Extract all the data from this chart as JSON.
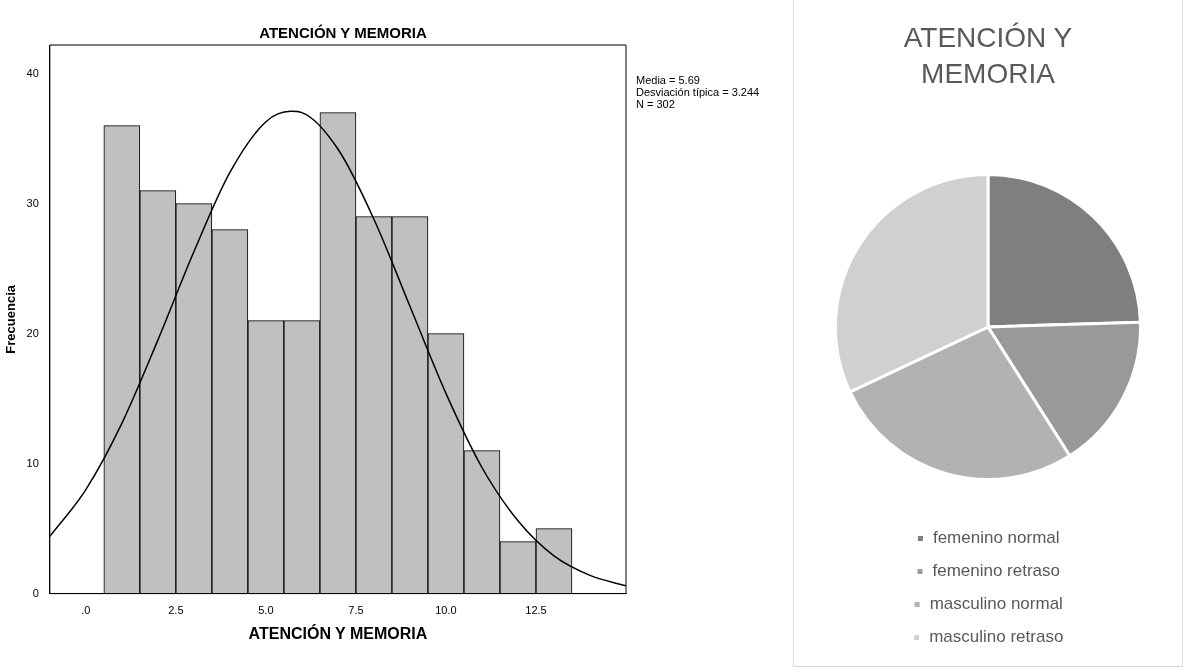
{
  "chart_data": [
    {
      "type": "histogram",
      "title": "ATENCIÓN Y MEMORIA",
      "xlabel": "ATENCIÓN Y MEMORIA",
      "ylabel": "Frecuencia",
      "bins": [
        0.5,
        1.5,
        2.5,
        3.5,
        4.5,
        5.5,
        6.5,
        7.5,
        8.5,
        9.5,
        10.5,
        11.5,
        12.5,
        13.5
      ],
      "values": [
        36,
        31,
        30,
        28,
        21,
        21,
        37,
        29,
        29,
        20,
        11,
        4,
        5
      ],
      "color": "#c0c0c0",
      "series": [
        {
          "type": "line",
          "color": "#000000",
          "x": [
            -1,
            0,
            1,
            2,
            3,
            4,
            5,
            5.69,
            6,
            7,
            8,
            9,
            10,
            11,
            12,
            13,
            14,
            15
          ],
          "values": [
            4.4,
            8.0,
            13.1,
            19.5,
            26.3,
            32.4,
            36.3,
            37.1,
            37.0,
            34.2,
            28.8,
            22.1,
            15.4,
            9.7,
            5.6,
            2.9,
            1.4,
            0.6
          ]
        }
      ],
      "xlim": [
        -1,
        15
      ],
      "ylim": [
        0,
        42.2
      ],
      "xticks": [
        {
          "value": 0,
          "label": ".0"
        },
        {
          "value": 2.5,
          "label": "2.5"
        },
        {
          "value": 5,
          "label": "5.0"
        },
        {
          "value": 7.5,
          "label": "7.5"
        },
        {
          "value": 10,
          "label": "10.0"
        },
        {
          "value": 12.5,
          "label": "12.5"
        }
      ],
      "yticks": [
        0,
        10,
        20,
        30,
        40
      ],
      "annotations": [
        "Media = 5.69",
        "Desviación típica = 3.244",
        "N = 302"
      ]
    },
    {
      "type": "pie",
      "title": "ATENCIÓN Y MEMORIA",
      "categories": [
        "femenino normal",
        "femenino retraso",
        "masculino normal",
        "masculino retraso"
      ],
      "values": [
        24.5,
        16.5,
        27,
        32
      ],
      "colors": [
        "#7f7f7f",
        "#999999",
        "#b2b2b2",
        "#d0d0d0"
      ],
      "legend": "bottom"
    }
  ]
}
